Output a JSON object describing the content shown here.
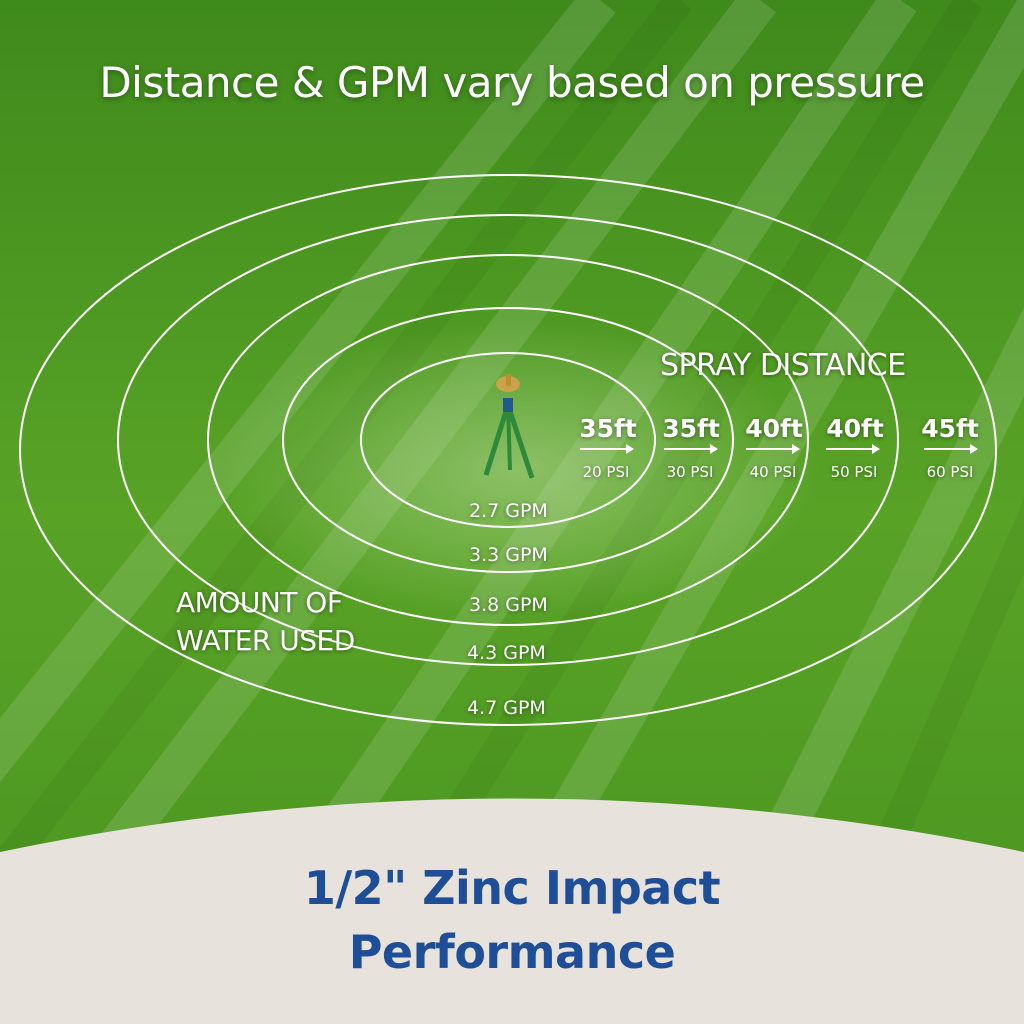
{
  "header": {
    "title": "Distance & GPM vary based on pressure"
  },
  "spray": {
    "title": "SPRAY DISTANCE",
    "items": [
      {
        "distance": "35ft",
        "pressure": "20 PSI"
      },
      {
        "distance": "35ft",
        "pressure": "30 PSI"
      },
      {
        "distance": "40ft",
        "pressure": "40 PSI"
      },
      {
        "distance": "40ft",
        "pressure": "50 PSI"
      },
      {
        "distance": "45ft",
        "pressure": "60 PSI"
      }
    ]
  },
  "water": {
    "title_line1": "AMOUNT OF",
    "title_line2": "WATER USED",
    "items": [
      "2.7 GPM",
      "3.3 GPM",
      "3.8 GPM",
      "4.3 GPM",
      "4.7 GPM"
    ]
  },
  "footer": {
    "line1": "1/2\" Zinc Impact",
    "line2": "Performance"
  },
  "colors": {
    "grass": "#4f9a22",
    "footer_bg": "#e7e3dc",
    "footer_text": "#1e4e97",
    "ring": "#ffffff"
  }
}
